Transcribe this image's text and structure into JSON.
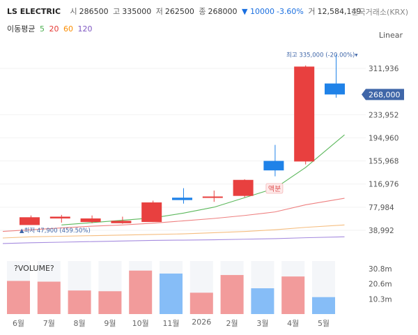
{
  "header": {
    "ticker": "LS ELECTRIC",
    "open_label": "시",
    "open": "286500",
    "high_label": "고",
    "high": "335000",
    "low_label": "저",
    "low": "262500",
    "close_label": "종",
    "close": "268000",
    "change": "▼ 10000",
    "change_pct": "-3.60%",
    "volume_label": "거",
    "volume": "12,584,149",
    "exchange": "한국거래소(KRX)"
  },
  "ma_legend": {
    "title": "이동평균",
    "items": [
      "5",
      "20",
      "60",
      "120"
    ],
    "colors": [
      "#4caf50",
      "#e53935",
      "#fb8c00",
      "#7e57c2"
    ]
  },
  "scale_toggle": "Linear",
  "chart_data": {
    "type": "candlestick",
    "categories": [
      "6월",
      "7월",
      "8월",
      "9월",
      "10월",
      "11월",
      "2026",
      "2월",
      "3월",
      "4월",
      "5월"
    ],
    "open": [
      47900,
      59000,
      53000,
      51000,
      53000,
      94000,
      94000,
      97000,
      156000,
      155000,
      286500
    ],
    "close": [
      61000,
      62000,
      59000,
      55000,
      86000,
      90000,
      96000,
      124000,
      140000,
      315000,
      268000
    ],
    "high": [
      64000,
      65000,
      64000,
      62000,
      89000,
      110000,
      106000,
      125000,
      183000,
      317000,
      335000
    ],
    "low": [
      47900,
      52000,
      51000,
      50000,
      53000,
      84000,
      87000,
      95000,
      130000,
      150000,
      262500
    ],
    "volume_m": [
      22.5,
      22,
      16,
      15.5,
      29.5,
      27.5,
      14.5,
      26.5,
      17.5,
      25.5,
      11.5
    ],
    "ma5": [
      null,
      48000,
      52000,
      56000,
      60000,
      68000,
      78000,
      94000,
      110000,
      145000,
      200000
    ],
    "ma20": [
      40000,
      43000,
      46000,
      48000,
      51000,
      55000,
      59000,
      64000,
      70000,
      82000,
      93000
    ],
    "ma60": [
      28000,
      29000,
      30000,
      31000,
      32000,
      33000,
      35000,
      37000,
      40000,
      44000,
      48000
    ],
    "ma120": [
      18000,
      19000,
      20000,
      21000,
      22000,
      22500,
      23000,
      24000,
      25000,
      26500,
      28000
    ],
    "y_ticks": [
      "311,936",
      "233,952",
      "194,960",
      "155,968",
      "116,976",
      "77,984",
      "38,992"
    ],
    "y_tick_values": [
      311936,
      233952,
      194960,
      155968,
      116976,
      77984,
      38992
    ],
    "current_price": "268,000",
    "current_value": 268000,
    "max_annotation": "최고 335,000 (-20.00%)▾",
    "min_annotation": "▲최저 47,900 (459.50%)",
    "event_marker": "액분",
    "volume_label": "?VOLUME?",
    "volume_ticks": [
      "30.8m",
      "20.6m",
      "10.3m"
    ],
    "volume_tick_values": [
      30.8,
      20.6,
      10.3
    ],
    "up_color": "#e8403f",
    "down_color": "#1f82e8",
    "vol_up_color": "#f29b9b",
    "vol_down_color": "#86bdf7",
    "current_bg": "#3f66a8"
  }
}
